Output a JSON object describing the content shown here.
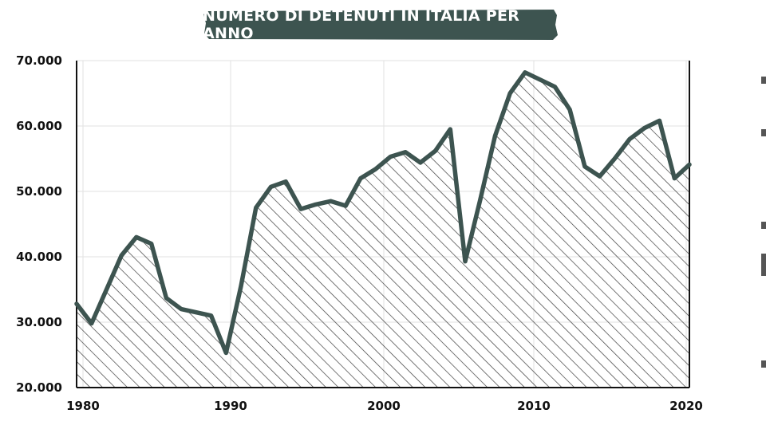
{
  "header": {
    "title": "NUMERO DI DETENUTI IN ITALIA PER ANNO"
  },
  "colors": {
    "accent": "#3d5450",
    "background": "#ffffff",
    "grid": "#e2e2e2",
    "axis": "#111111"
  },
  "chart_data": {
    "type": "area",
    "title": "NUMERO DI DETENUTI IN ITALIA PER ANNO",
    "xlabel": "",
    "ylabel": "",
    "xlim": [
      1980,
      2021
    ],
    "ylim": [
      20000,
      70000
    ],
    "grid": true,
    "fill_pattern": "diagonal-hatch",
    "x_ticks": [
      1980,
      1990,
      2000,
      2010,
      2020
    ],
    "x_tick_labels": [
      "1980",
      "1990",
      "2000",
      "2010",
      "2020"
    ],
    "y_ticks": [
      20000,
      30000,
      40000,
      50000,
      60000,
      70000
    ],
    "y_tick_labels": [
      "20.000",
      "30.000",
      "40.000",
      "50.000",
      "60.000",
      "70.000"
    ],
    "series": [
      {
        "x": [
          1980,
          1981,
          1982,
          1983,
          1984,
          1985,
          1986,
          1987,
          1988,
          1989,
          1990,
          1991,
          1992,
          1993,
          1994,
          1995,
          1996,
          1997,
          1998,
          1999,
          2000,
          2001,
          2002,
          2003,
          2004,
          2005,
          2006,
          2007,
          2008,
          2009,
          2010,
          2011,
          2012,
          2013,
          2014,
          2015,
          2016,
          2017,
          2018,
          2019,
          2020,
          2021
        ],
        "values": [
          32800,
          29800,
          35000,
          40200,
          43000,
          42000,
          33700,
          32000,
          31500,
          31000,
          25300,
          35500,
          47500,
          50700,
          51500,
          47300,
          48000,
          48500,
          47800,
          52000,
          53400,
          55300,
          56000,
          54400,
          56200,
          59500,
          39300,
          48700,
          58500,
          65000,
          68200,
          67100,
          66000,
          62500,
          53800,
          52300,
          55000,
          58000,
          59700,
          60800,
          52000,
          54100
        ]
      }
    ]
  }
}
